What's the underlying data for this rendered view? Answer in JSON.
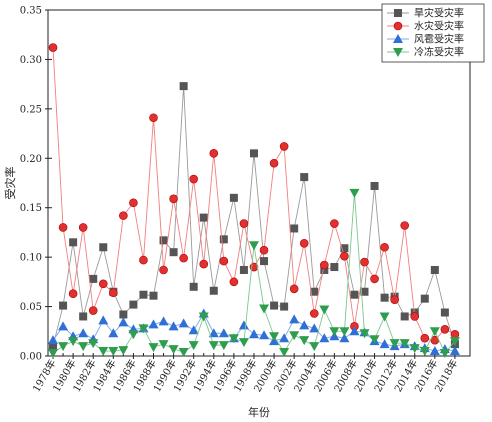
{
  "chart_data": {
    "type": "line",
    "xlabel": "年份",
    "ylabel": "受灾率",
    "ylim": [
      0,
      0.35
    ],
    "yticks": [
      "0.00",
      "0.05",
      "0.10",
      "0.15",
      "0.20",
      "0.25",
      "0.30",
      "0.35"
    ],
    "x": [
      1978,
      1979,
      1980,
      1981,
      1982,
      1983,
      1984,
      1985,
      1986,
      1987,
      1988,
      1989,
      1990,
      1991,
      1992,
      1993,
      1994,
      1995,
      1996,
      1997,
      1998,
      1999,
      2000,
      2001,
      2002,
      2003,
      2004,
      2005,
      2006,
      2007,
      2008,
      2009,
      2010,
      2011,
      2012,
      2013,
      2014,
      2015,
      2016,
      2017,
      2018
    ],
    "xticks": [
      "1978年",
      "1980年",
      "1982年",
      "1984年",
      "1986年",
      "1988年",
      "1990年",
      "1992年",
      "1994年",
      "1996年",
      "1998年",
      "2000年",
      "2002年",
      "2004年",
      "2006年",
      "2008年",
      "2010年",
      "2012年",
      "2014年",
      "2016年",
      "2018年"
    ],
    "grid": false,
    "legend_position": "top-right",
    "series": [
      {
        "name": "旱灾受灾率",
        "color": "#555555",
        "marker": "square",
        "values": [
          0.01,
          0.051,
          0.115,
          0.04,
          0.078,
          0.11,
          0.065,
          0.042,
          0.052,
          0.062,
          0.061,
          0.117,
          0.105,
          0.273,
          0.07,
          0.14,
          0.066,
          0.118,
          0.16,
          0.087,
          0.205,
          0.096,
          0.051,
          0.05,
          0.129,
          0.181,
          0.065,
          0.087,
          0.09,
          0.109,
          0.062,
          0.065,
          0.172,
          0.059,
          0.06,
          0.04,
          0.044,
          0.058,
          0.087,
          0.044,
          0.012
        ]
      },
      {
        "name": "水灾受灾率",
        "color": "#e03030",
        "marker": "circle",
        "values": [
          0.312,
          0.13,
          0.063,
          0.13,
          0.046,
          0.073,
          0.064,
          0.142,
          0.155,
          0.097,
          0.241,
          0.087,
          0.159,
          0.099,
          0.179,
          0.093,
          0.205,
          0.096,
          0.075,
          0.134,
          0.09,
          0.107,
          0.195,
          0.212,
          0.068,
          0.114,
          0.043,
          0.092,
          0.134,
          0.101,
          0.03,
          0.095,
          0.078,
          0.11,
          0.057,
          0.132,
          0.04,
          0.018,
          0.016,
          0.027,
          0.022
        ]
      },
      {
        "name": "风雹受灾率",
        "color": "#2f6fd6",
        "marker": "triangle-up",
        "values": [
          0.016,
          0.03,
          0.02,
          0.023,
          0.017,
          0.036,
          0.023,
          0.034,
          0.027,
          0.028,
          0.032,
          0.035,
          0.03,
          0.033,
          0.026,
          0.043,
          0.023,
          0.023,
          0.018,
          0.031,
          0.022,
          0.021,
          0.015,
          0.018,
          0.037,
          0.031,
          0.028,
          0.018,
          0.02,
          0.018,
          0.025,
          0.024,
          0.015,
          0.012,
          0.01,
          0.012,
          0.01,
          0.008,
          0.005,
          0.007,
          0.005
        ]
      },
      {
        "name": "冷冻受灾率",
        "color": "#2e9e4e",
        "marker": "triangle-down",
        "values": [
          0.003,
          0.01,
          0.015,
          0.01,
          0.013,
          0.005,
          0.005,
          0.006,
          0.022,
          0.028,
          0.009,
          0.012,
          0.007,
          0.004,
          0.011,
          0.04,
          0.011,
          0.011,
          0.018,
          0.014,
          0.112,
          0.048,
          0.02,
          0.004,
          0.021,
          0.016,
          0.01,
          0.047,
          0.025,
          0.025,
          0.165,
          0.023,
          0.017,
          0.04,
          0.013,
          0.013,
          0.008,
          0.005,
          0.025,
          0.003,
          0.015
        ]
      }
    ]
  }
}
